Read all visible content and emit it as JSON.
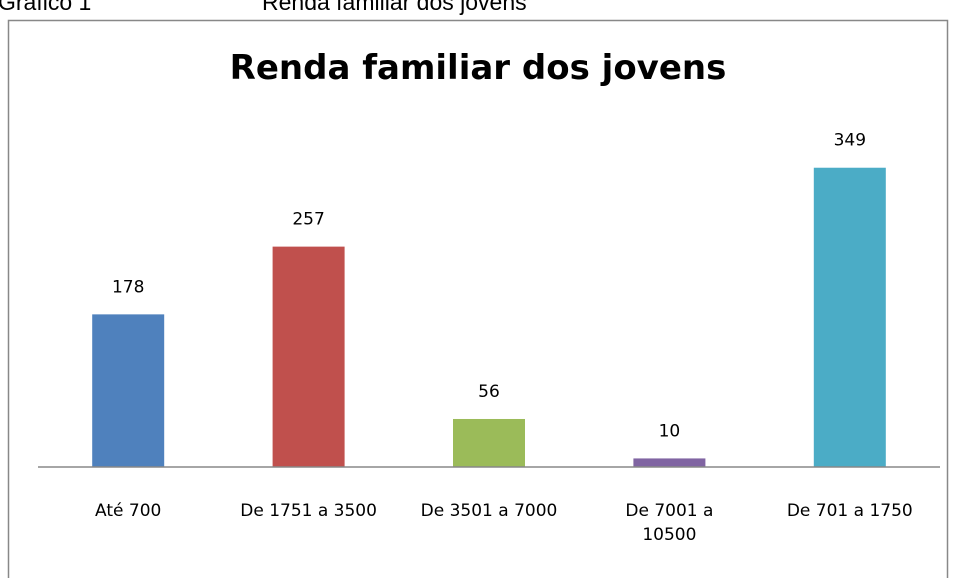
{
  "caption": {
    "label": "Gráfico 1",
    "title": "Renda familiar dos jovens"
  },
  "chart_data": {
    "type": "bar",
    "title": "Renda familiar dos jovens",
    "categories": [
      "Até 700",
      "De 1751 a 3500",
      "De 3501 a 7000",
      "De 7001 a 10500",
      "De 701 a 1750"
    ],
    "values": [
      178,
      257,
      56,
      10,
      349
    ],
    "colors": [
      "#4f81bd",
      "#c0504d",
      "#9bbb59",
      "#8064a2",
      "#4bacc6"
    ],
    "ylim": [
      0,
      400
    ]
  }
}
